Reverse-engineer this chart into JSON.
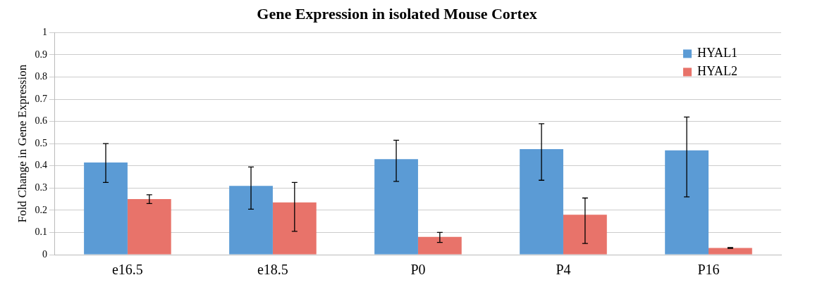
{
  "chart_data": {
    "type": "bar",
    "title": "Gene Expression in isolated Mouse Cortex",
    "ylabel": "Fold Change in Gene Expression",
    "categories": [
      "e16.5",
      "e18.5",
      "P0",
      "P4",
      "P16"
    ],
    "series": [
      {
        "name": "HYAL1",
        "color": "#5b9bd5",
        "values": [
          0.415,
          0.31,
          0.43,
          0.475,
          0.47
        ],
        "errors": [
          [
            0.325,
            0.5
          ],
          [
            0.205,
            0.395
          ],
          [
            0.33,
            0.515
          ],
          [
            0.335,
            0.59
          ],
          [
            0.26,
            0.62
          ]
        ]
      },
      {
        "name": "HYAL2",
        "color": "#e8736a",
        "values": [
          0.25,
          0.235,
          0.08,
          0.18,
          0.03
        ],
        "errors": [
          [
            0.23,
            0.27
          ],
          [
            0.105,
            0.325
          ],
          [
            0.055,
            0.1
          ],
          [
            0.05,
            0.255
          ],
          [
            0.028,
            0.032
          ]
        ]
      }
    ],
    "ylim": [
      0,
      1
    ],
    "yticks": [
      0,
      0.1,
      0.2,
      0.3,
      0.4,
      0.5,
      0.6,
      0.7,
      0.8,
      0.9,
      1
    ],
    "grid": "y",
    "legend": "top right"
  }
}
